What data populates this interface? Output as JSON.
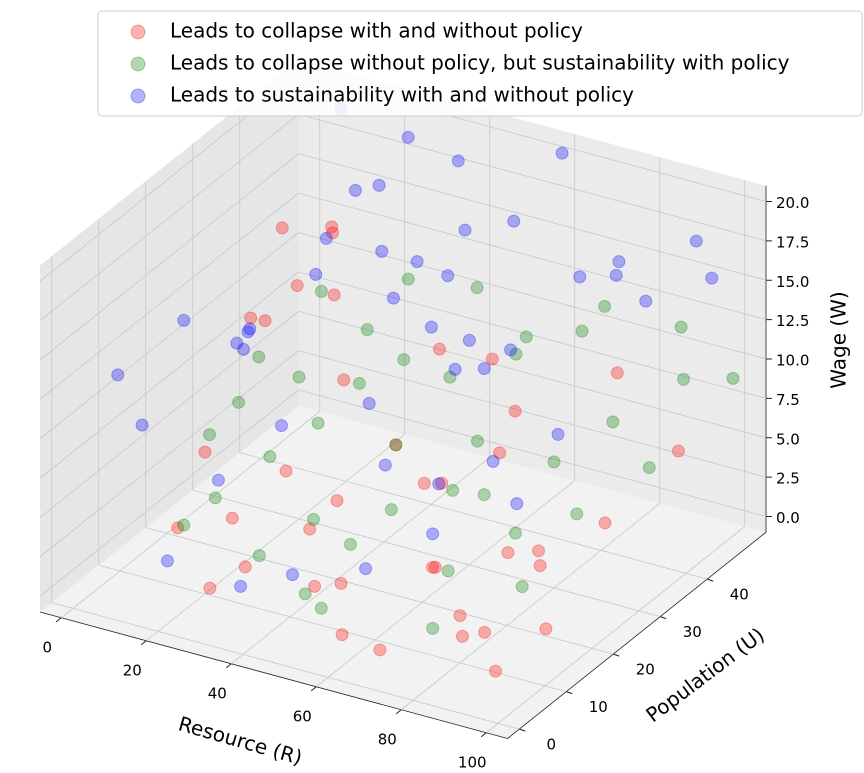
{
  "chart_data": {
    "type": "scatter3d",
    "x_label": "Resource (R)",
    "y_label": "Population (U)",
    "z_label": "Wage (W)",
    "xlim": [
      -5,
      105
    ],
    "ylim": [
      -2.5,
      52.5
    ],
    "zlim": [
      -1,
      21
    ],
    "xticks": [
      0,
      20,
      40,
      60,
      80,
      100
    ],
    "yticks": [
      0,
      10,
      20,
      30,
      40
    ],
    "zticks": [
      {
        "value": 0,
        "label": "0.0"
      },
      2.5,
      {
        "value": 5,
        "label": "5.0"
      },
      7.5,
      {
        "value": 10,
        "label": "10.0"
      },
      12.5,
      {
        "value": 15,
        "label": "15.0"
      },
      17.5,
      {
        "value": 20,
        "label": "20.0"
      }
    ],
    "grid": true,
    "alpha": 0.3,
    "legend_loc": "upper right",
    "series": [
      {
        "name": "Leads to collapse with and without policy",
        "color": "#ff0000",
        "x": [
          5,
          12,
          3,
          20,
          35,
          48,
          60,
          72,
          85,
          95,
          8,
          25,
          40,
          55,
          68,
          80,
          90,
          15,
          30,
          45,
          62,
          78,
          92,
          10,
          22,
          50,
          65,
          88,
          2,
          38,
          58,
          75,
          98,
          18,
          42,
          70,
          83,
          28,
          52,
          96
        ],
        "y": [
          40,
          30,
          45,
          10,
          5,
          8,
          3,
          12,
          6,
          4,
          48,
          35,
          20,
          25,
          15,
          10,
          18,
          42,
          2,
          28,
          38,
          22,
          30,
          46,
          14,
          44,
          32,
          8,
          36,
          16,
          26,
          48,
          12,
          6,
          40,
          2,
          24,
          20,
          10,
          42
        ],
        "z": [
          14,
          11,
          9,
          8,
          3,
          2,
          1,
          4,
          2,
          1,
          12,
          7,
          4,
          5,
          3,
          2,
          4,
          10,
          2,
          6,
          7,
          3,
          4,
          13,
          3,
          8,
          6,
          2,
          9,
          3,
          5,
          8,
          2,
          4,
          9,
          1,
          3,
          5,
          2,
          6
        ]
      },
      {
        "name": "Leads to collapse without policy, but sustainability with policy",
        "color": "#008000",
        "x": [
          10,
          20,
          30,
          40,
          50,
          60,
          70,
          80,
          90,
          100,
          15,
          25,
          35,
          45,
          55,
          65,
          75,
          85,
          95,
          5,
          28,
          48,
          68,
          88,
          12,
          32,
          52,
          72,
          92,
          18,
          38,
          58,
          78,
          98,
          22,
          42,
          62,
          82,
          8,
          54
        ],
        "y": [
          20,
          30,
          25,
          15,
          35,
          40,
          45,
          30,
          48,
          50,
          10,
          40,
          8,
          28,
          18,
          22,
          12,
          38,
          44,
          35,
          46,
          6,
          26,
          16,
          42,
          32,
          12,
          48,
          24,
          14,
          36,
          44,
          6,
          34,
          22,
          48,
          30,
          20,
          28,
          4
        ],
        "z": [
          6,
          8,
          7,
          4,
          9,
          10,
          11,
          7,
          12,
          9,
          3,
          9,
          3,
          6,
          5,
          6,
          4,
          8,
          10,
          7,
          11,
          2,
          5,
          3,
          10,
          8,
          4,
          12,
          6,
          4,
          9,
          10,
          2,
          7,
          5,
          11,
          7,
          5,
          6,
          2
        ]
      },
      {
        "name": "Leads to sustainability with and without policy",
        "color": "#0000ff",
        "x": [
          5,
          15,
          25,
          35,
          45,
          55,
          65,
          75,
          85,
          95,
          10,
          20,
          30,
          40,
          50,
          60,
          70,
          80,
          90,
          100,
          8,
          18,
          28,
          38,
          48,
          58,
          68,
          78,
          88,
          98,
          12,
          22,
          32,
          42,
          52,
          62,
          72,
          82,
          92,
          3,
          45,
          60,
          35,
          20,
          75
        ],
        "y": [
          5,
          10,
          15,
          20,
          25,
          30,
          35,
          40,
          45,
          50,
          48,
          42,
          38,
          32,
          28,
          22,
          18,
          12,
          8,
          4,
          30,
          20,
          46,
          10,
          40,
          14,
          26,
          6,
          36,
          44,
          24,
          34,
          2,
          44,
          16,
          48,
          28,
          42,
          20,
          12,
          6,
          8,
          4,
          2,
          10
        ],
        "z": [
          13,
          16,
          15,
          18,
          19,
          17,
          20,
          16,
          14,
          15,
          20,
          17,
          19,
          14,
          18,
          16,
          15,
          19,
          13,
          12,
          10,
          12,
          20,
          11,
          17,
          9,
          13,
          8,
          18,
          19,
          11,
          16,
          9,
          20,
          12,
          21,
          14,
          17,
          12,
          8,
          3,
          4,
          2,
          3,
          10
        ]
      }
    ]
  }
}
